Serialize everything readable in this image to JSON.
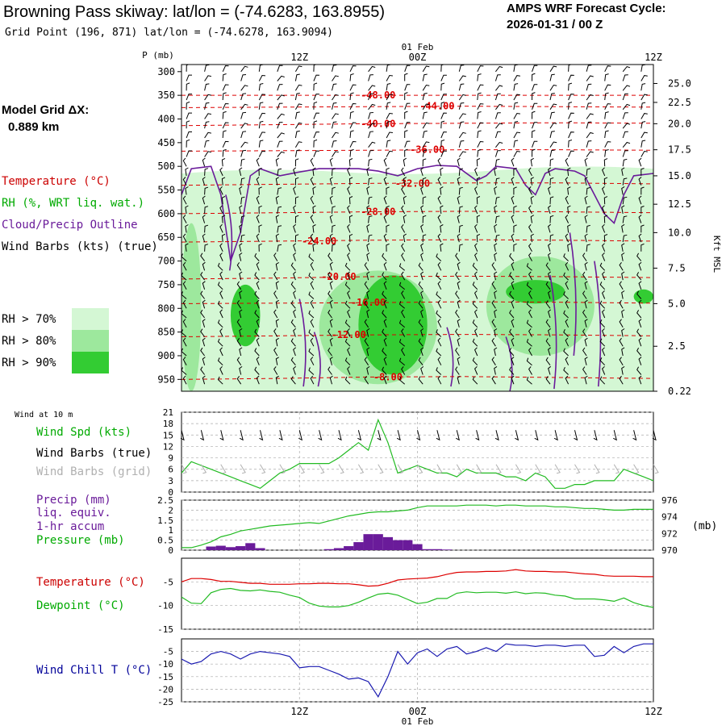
{
  "header": {
    "title": "Browning Pass skiway:  lat/lon = (-74.6283, 163.8955)",
    "grid_point": "Grid Point (196, 871) lat/lon = (-74.6278, 163.9094)",
    "cycle_line1": "AMPS WRF Forecast Cycle:",
    "cycle_line2": "2026-01-31 / 00  Z"
  },
  "left_panel": {
    "model_grid_label": "Model Grid ΔX:",
    "model_grid_value": "0.889 km",
    "legend_temperature": "Temperature (°C)",
    "legend_rh": "RH (%, WRT liq. wat.)",
    "legend_cloud": "Cloud/Precip Outline",
    "legend_wind": "Wind Barbs (kts) (true)",
    "rh70": "RH > 70%",
    "rh80": "RH > 80%",
    "rh90": "RH > 90%"
  },
  "time_axis": {
    "top_date": "01 Feb",
    "bottom_date": "01 Feb",
    "ticks": [
      "12Z",
      "00Z",
      "12Z"
    ]
  },
  "colors": {
    "rh70": "#d4f7d4",
    "rh80": "#9de89d",
    "rh90": "#33cc33",
    "temperature": "#dd0000",
    "green_line": "#22bb22",
    "precip": "#6a1b9a",
    "windchill": "#1a1ab0",
    "grid": "#aaaaaa"
  },
  "chart_data": [
    {
      "type": "time-height cross section",
      "ylabel": "P (mb)",
      "p_ticks": [
        300,
        350,
        400,
        450,
        500,
        550,
        600,
        650,
        700,
        750,
        800,
        850,
        900,
        950
      ],
      "right_axis_label": "Kft MSL",
      "kft_ticks": [
        "25.0",
        "22.5",
        "20.0",
        "17.5",
        "15.0",
        "12.5",
        "10.0",
        "7.5",
        "5.0",
        "2.5",
        "0.22"
      ],
      "kft_pressure": [
        325,
        365,
        410,
        465,
        520,
        580,
        640,
        715,
        790,
        880,
        975
      ],
      "x_hours": [
        0,
        48
      ],
      "temperature_contours": [
        {
          "label": "-48.00",
          "value": -48,
          "p": [
            350,
            350,
            350,
            350,
            350,
            350
          ]
        },
        {
          "label": "-44.00",
          "value": -44,
          "p": [
            376,
            375,
            374,
            373,
            374,
            375
          ]
        },
        {
          "label": "-40.00",
          "value": -40,
          "p": [
            414,
            412,
            410,
            409,
            408,
            409
          ]
        },
        {
          "label": "-36.00",
          "value": -36,
          "p": [
            468,
            467,
            466,
            465,
            465,
            466
          ]
        },
        {
          "label": "-32.00",
          "value": -32,
          "p": [
            540,
            538,
            536,
            535,
            535,
            537
          ]
        },
        {
          "label": "-28.00",
          "value": -28,
          "p": [
            600,
            598,
            596,
            595,
            596,
            598
          ]
        },
        {
          "label": "-24.00",
          "value": -24,
          "p": [
            660,
            658,
            656,
            655,
            656,
            658
          ]
        },
        {
          "label": "-20.00",
          "value": -20,
          "p": [
            738,
            736,
            733,
            732,
            733,
            735
          ]
        },
        {
          "label": "-16.00",
          "value": -16,
          "p": [
            790,
            789,
            788,
            786,
            787,
            789
          ]
        },
        {
          "label": "-12.00",
          "value": -12,
          "p": [
            860,
            858,
            856,
            855,
            856,
            858
          ]
        },
        {
          "label": "-8.00",
          "value": -8,
          "p": [
            950,
            948,
            945,
            944,
            946,
            948
          ]
        }
      ],
      "label_positions_h": {
        "-48.00": 20,
        "-44.00": 26,
        "-40.00": 20,
        "-36.00": 25,
        "-32.00": 23.5,
        "-28.00": 20,
        "-24.00": 14,
        "-20.00": 16,
        "-16.00": 19,
        "-12.00": 17,
        "-8.00": 21
      },
      "rh_regions": [
        {
          "level": ">70%",
          "hours": [
            0,
            48
          ],
          "p_top": 505,
          "p_bottom": 975
        },
        {
          "level": ">80%",
          "hours": [
            0,
            2
          ],
          "p_top": 620,
          "p_bottom": 975
        },
        {
          "level": ">80%",
          "hours": [
            14,
            26
          ],
          "p_top": 720,
          "p_bottom": 960
        },
        {
          "level": ">80%",
          "hours": [
            31,
            42
          ],
          "p_top": 690,
          "p_bottom": 900
        },
        {
          "level": ">90%",
          "hours": [
            5,
            8
          ],
          "p_top": 750,
          "p_bottom": 880
        },
        {
          "level": ">90%",
          "hours": [
            18,
            25
          ],
          "p_top": 730,
          "p_bottom": 940
        },
        {
          "level": ">90%",
          "hours": [
            33,
            39
          ],
          "p_top": 740,
          "p_bottom": 790
        },
        {
          "level": ">90%",
          "hours": [
            46,
            48
          ],
          "p_top": 760,
          "p_bottom": 790
        }
      ]
    },
    {
      "type": "line",
      "title": "Wind at 10 m",
      "series_labels": [
        "Wind Spd (kts)",
        "Wind Barbs (true)",
        "Wind Barbs (grid)"
      ],
      "y_ticks": [
        0,
        3,
        6,
        9,
        12,
        15,
        18,
        21
      ],
      "ylim": [
        0,
        21
      ],
      "x": [
        0,
        1,
        2,
        3,
        4,
        5,
        6,
        7,
        8,
        9,
        10,
        11,
        12,
        13,
        14,
        15,
        16,
        17,
        18,
        19,
        20,
        21,
        22,
        23,
        24,
        25,
        26,
        27,
        28,
        29,
        30,
        31,
        32,
        33,
        34,
        35,
        36,
        37,
        38,
        39,
        40,
        41,
        42,
        43,
        44,
        45,
        46,
        47,
        48
      ],
      "wind_speed": [
        5,
        8,
        7,
        6,
        5,
        4,
        3,
        2,
        1,
        3,
        5,
        6,
        7.5,
        7.5,
        7.5,
        7.5,
        9,
        11,
        13,
        11,
        19,
        13,
        5,
        6,
        7,
        6,
        5,
        5,
        4,
        6,
        5,
        5,
        5,
        4,
        4,
        3,
        5,
        4,
        1,
        1,
        2,
        2,
        3,
        3,
        3,
        6,
        5,
        4,
        3
      ]
    },
    {
      "type": "bar+line",
      "series_labels": [
        "Precip (mm)",
        "liq. equiv.",
        "1-hr accum",
        "Pressure (mb)"
      ],
      "y_ticks": [
        0.0,
        0.5,
        1.0,
        1.5,
        2.0,
        2.5
      ],
      "ylim": [
        0,
        2.5
      ],
      "right_ticks": [
        970,
        972,
        974,
        976
      ],
      "right_lim": [
        970,
        976
      ],
      "right_label": "(mb)",
      "x": [
        0,
        1,
        2,
        3,
        4,
        5,
        6,
        7,
        8,
        9,
        10,
        11,
        12,
        13,
        14,
        15,
        16,
        17,
        18,
        19,
        20,
        21,
        22,
        23,
        24,
        25,
        26,
        27,
        28,
        29,
        30,
        31,
        32,
        33,
        34,
        35,
        36,
        37,
        38,
        39,
        40,
        41,
        42,
        43,
        44,
        45,
        46,
        47,
        48
      ],
      "precip": [
        0,
        0,
        0,
        0.18,
        0.22,
        0.15,
        0.2,
        0.35,
        0.1,
        0,
        0,
        0,
        0,
        0,
        0,
        0.05,
        0.1,
        0.2,
        0.4,
        0.8,
        0.8,
        0.65,
        0.5,
        0.5,
        0.3,
        0.05,
        0.05,
        0.03,
        0,
        0,
        0,
        0,
        0,
        0,
        0,
        0,
        0,
        0,
        0,
        0,
        0,
        0,
        0,
        0,
        0,
        0,
        0,
        0,
        0
      ],
      "pressure": [
        970.3,
        970.3,
        970.6,
        971.0,
        971.6,
        971.9,
        972.3,
        972.5,
        972.7,
        972.9,
        973.0,
        973.1,
        973.2,
        973.3,
        973.2,
        973.5,
        973.8,
        974.1,
        974.3,
        974.5,
        974.6,
        974.6,
        974.7,
        974.8,
        975.1,
        975.3,
        975.3,
        975.3,
        975.3,
        975.4,
        975.4,
        975.4,
        975.3,
        975.4,
        975.4,
        975.3,
        975.3,
        975.3,
        975.2,
        975.2,
        975.1,
        975.0,
        975.0,
        974.9,
        974.8,
        974.8,
        974.9,
        974.9,
        974.9
      ]
    },
    {
      "type": "line",
      "series_labels": [
        "Temperature (°C)",
        "Dewpoint (°C)"
      ],
      "y_ticks": [
        -15,
        -10,
        -5
      ],
      "ylim": [
        -15,
        0
      ],
      "x": [
        0,
        1,
        2,
        3,
        4,
        5,
        6,
        7,
        8,
        9,
        10,
        11,
        12,
        13,
        14,
        15,
        16,
        17,
        18,
        19,
        20,
        21,
        22,
        23,
        24,
        25,
        26,
        27,
        28,
        29,
        30,
        31,
        32,
        33,
        34,
        35,
        36,
        37,
        38,
        39,
        40,
        41,
        42,
        43,
        44,
        45,
        46,
        47,
        48
      ],
      "temperature": [
        -5.0,
        -4.3,
        -4.3,
        -4.5,
        -4.9,
        -4.9,
        -5.1,
        -5.3,
        -5.3,
        -5.5,
        -5.5,
        -5.5,
        -5.4,
        -5.4,
        -5.3,
        -5.3,
        -5.4,
        -5.4,
        -5.6,
        -5.9,
        -5.8,
        -5.3,
        -4.6,
        -4.4,
        -4.3,
        -4.2,
        -3.9,
        -3.4,
        -3.0,
        -2.9,
        -2.9,
        -2.8,
        -2.8,
        -2.7,
        -2.4,
        -2.7,
        -2.8,
        -2.8,
        -2.9,
        -2.9,
        -3.1,
        -3.3,
        -3.4,
        -3.7,
        -3.8,
        -3.8,
        -3.8,
        -3.9,
        -3.9
      ],
      "dewpoint": [
        -8.2,
        -9.5,
        -9.6,
        -7.3,
        -6.6,
        -6.4,
        -6.8,
        -6.9,
        -6.7,
        -7.0,
        -7.2,
        -7.8,
        -8.3,
        -9.5,
        -10.1,
        -10.3,
        -10.3,
        -10.0,
        -9.3,
        -8.4,
        -7.6,
        -7.4,
        -7.8,
        -8.7,
        -9.6,
        -9.3,
        -8.5,
        -8.5,
        -7.4,
        -7.1,
        -7.3,
        -7.2,
        -7.2,
        -7.4,
        -7.1,
        -7.5,
        -7.3,
        -7.4,
        -7.8,
        -8.0,
        -8.6,
        -8.6,
        -8.6,
        -8.8,
        -9.1,
        -8.4,
        -9.4,
        -10.0,
        -10.4
      ]
    },
    {
      "type": "line",
      "series_labels": [
        "Wind Chill T (°C)"
      ],
      "y_ticks": [
        -25,
        -20,
        -15,
        -10,
        -5
      ],
      "ylim": [
        -25,
        0
      ],
      "x": [
        0,
        1,
        2,
        3,
        4,
        5,
        6,
        7,
        8,
        9,
        10,
        11,
        12,
        13,
        14,
        15,
        16,
        17,
        18,
        19,
        20,
        21,
        22,
        23,
        24,
        25,
        26,
        27,
        28,
        29,
        30,
        31,
        32,
        33,
        34,
        35,
        36,
        37,
        38,
        39,
        40,
        41,
        42,
        43,
        44,
        45,
        46,
        47,
        48
      ],
      "windchill": [
        -8,
        -10,
        -9,
        -6,
        -5,
        -6,
        -8,
        -6,
        -5,
        -5.5,
        -6,
        -7,
        -11.5,
        -11,
        -11,
        -12.5,
        -14,
        -16,
        -15.5,
        -17,
        -23,
        -15,
        -5,
        -10,
        -5.5,
        -4,
        -7,
        -4,
        -3,
        -6,
        -5,
        -3.5,
        -5,
        -2,
        -2.5,
        -2.5,
        -3,
        -2.5,
        -2.5,
        -3,
        -2.5,
        -2.5,
        -7,
        -6.5,
        -3,
        -5.5,
        -3,
        -2,
        -2
      ]
    }
  ]
}
